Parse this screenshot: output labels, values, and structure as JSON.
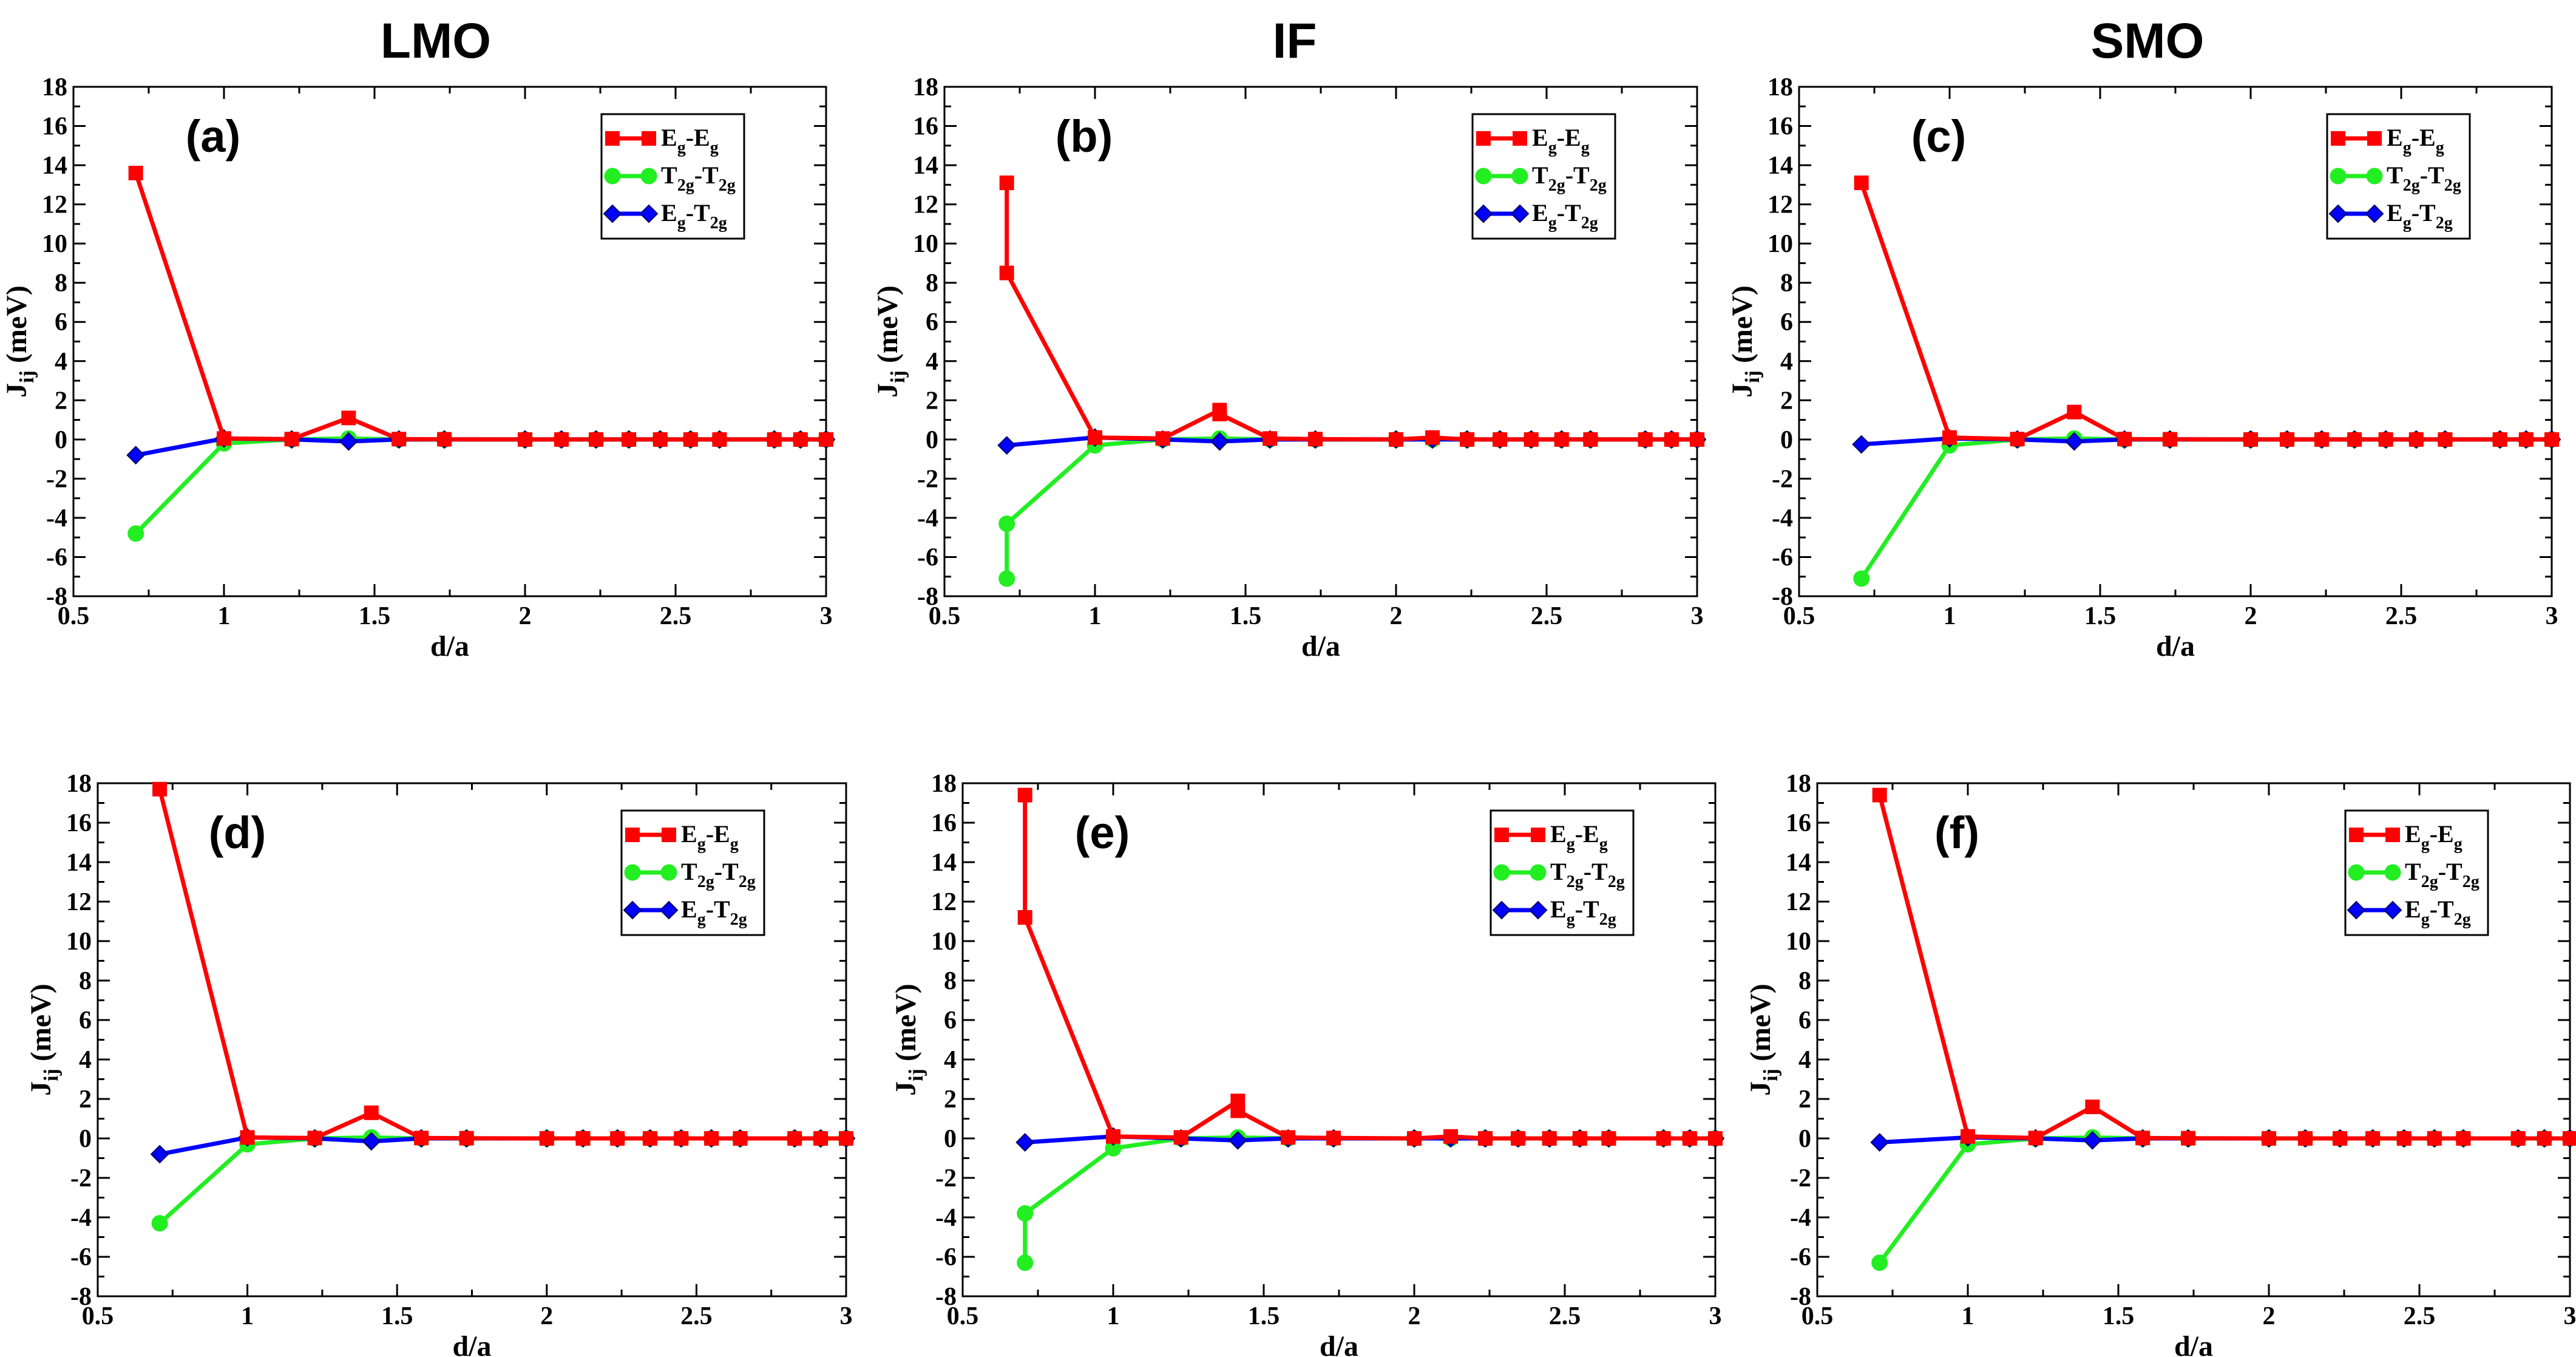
{
  "figure": {
    "column_titles": [
      "LMO",
      "IF",
      "SMO"
    ],
    "xlabel": "d/a",
    "ylabel_main": "J",
    "ylabel_sub": "ij",
    "ylabel_unit": " (meV)",
    "legend": [
      {
        "key": "Eg-Eg",
        "parts": [
          [
            "E",
            ""
          ],
          [
            "g",
            "sub"
          ],
          [
            "-E",
            ""
          ],
          [
            "g",
            "sub"
          ]
        ],
        "color": "#ff0000",
        "marker": "square"
      },
      {
        "key": "T2g-T2g",
        "parts": [
          [
            "T",
            ""
          ],
          [
            "2g",
            "sub"
          ],
          [
            "-T",
            ""
          ],
          [
            "2g",
            "sub"
          ]
        ],
        "color": "#00ff00",
        "marker": "circle"
      },
      {
        "key": "Eg-T2g",
        "parts": [
          [
            "E",
            ""
          ],
          [
            "g",
            "sub"
          ],
          [
            "-T",
            ""
          ],
          [
            "2g",
            "sub"
          ]
        ],
        "color": "#0000ff",
        "marker": "diamond"
      }
    ],
    "colors": {
      "eg": "#ff0000",
      "t2g": "#22ee22",
      "egt2g": "#0000ff",
      "axis": "#000000"
    }
  },
  "chart_data": [
    {
      "type": "line",
      "panel": "(a)",
      "column": "LMO",
      "row": 0,
      "xlim": [
        0.5,
        3
      ],
      "ylim": [
        -8,
        18
      ],
      "xticks": [
        0.5,
        1,
        1.5,
        2,
        2.5,
        3
      ],
      "xtick_labels": [
        "0.5",
        "1",
        "1.5",
        "2",
        "2.5",
        "3"
      ],
      "yticks": [
        -8,
        -6,
        -4,
        -2,
        0,
        2,
        4,
        6,
        8,
        10,
        12,
        14,
        16,
        18
      ],
      "series": [
        {
          "name": "Eg-Eg",
          "marker": "square",
          "x": [
            0.707,
            1.0,
            1.225,
            1.414,
            1.581,
            1.732,
            2.0,
            2.121,
            2.236,
            2.345,
            2.449,
            2.55,
            2.646,
            2.828,
            2.915,
            3.0
          ],
          "y": [
            13.6,
            0.05,
            0.02,
            1.1,
            0.02,
            0.01,
            0,
            0,
            0,
            0,
            0,
            0,
            0,
            0,
            0,
            0
          ]
        },
        {
          "name": "T2g-T2g",
          "marker": "circle",
          "x": [
            0.707,
            1.0,
            1.225,
            1.414,
            1.581,
            1.732,
            2.0,
            2.121,
            2.236,
            2.345,
            2.449,
            2.55,
            2.646,
            2.828,
            2.915,
            3.0
          ],
          "y": [
            -4.8,
            -0.2,
            0.0,
            0.05,
            0.0,
            0.0,
            0,
            0,
            0,
            0,
            0,
            0,
            0,
            0,
            0,
            0
          ]
        },
        {
          "name": "Eg-T2g",
          "marker": "diamond",
          "x": [
            0.707,
            1.0,
            1.225,
            1.414,
            1.581,
            1.732,
            2.0,
            2.121,
            2.236,
            2.345,
            2.449,
            2.55,
            2.646,
            2.828,
            2.915,
            3.0
          ],
          "y": [
            -0.8,
            0.05,
            0.0,
            -0.1,
            0.0,
            0.0,
            0,
            0,
            0,
            0,
            0,
            0,
            0,
            0,
            0,
            0
          ]
        }
      ]
    },
    {
      "type": "line",
      "panel": "(b)",
      "column": "IF",
      "row": 0,
      "xlim": [
        0.5,
        3
      ],
      "ylim": [
        -8,
        18
      ],
      "xticks": [
        0.5,
        1,
        1.5,
        2,
        2.5,
        3
      ],
      "xtick_labels": [
        "0.5",
        "1",
        "1.5",
        "2",
        "2.5",
        "3"
      ],
      "yticks": [
        -8,
        -6,
        -4,
        -2,
        0,
        2,
        4,
        6,
        8,
        10,
        12,
        14,
        16,
        18
      ],
      "series": [
        {
          "name": "Eg-Eg",
          "marker": "square",
          "x": [
            0.707,
            0.707,
            1.0,
            1.225,
            1.414,
            1.414,
            1.581,
            1.732,
            2.0,
            2.121,
            2.236,
            2.345,
            2.449,
            2.55,
            2.646,
            2.828,
            2.915,
            3.0
          ],
          "y": [
            13.1,
            8.5,
            0.1,
            0.05,
            1.5,
            1.3,
            0.05,
            0.02,
            0,
            0.1,
            0,
            0,
            0,
            0,
            0,
            0,
            0,
            0
          ]
        },
        {
          "name": "T2g-T2g",
          "marker": "circle",
          "x": [
            0.707,
            0.707,
            1.0,
            1.225,
            1.414,
            1.581,
            1.732,
            2.0,
            2.121,
            2.236,
            2.345,
            2.449,
            2.55,
            2.646,
            2.828,
            2.915,
            3.0
          ],
          "y": [
            -7.1,
            -4.3,
            -0.3,
            0.0,
            0.05,
            0.0,
            0.0,
            0,
            0,
            0,
            0,
            0,
            0,
            0,
            0,
            0,
            0
          ]
        },
        {
          "name": "Eg-T2g",
          "marker": "diamond",
          "x": [
            0.707,
            1.0,
            1.225,
            1.414,
            1.581,
            1.732,
            2.0,
            2.121,
            2.236,
            2.345,
            2.449,
            2.55,
            2.646,
            2.828,
            2.915,
            3.0
          ],
          "y": [
            -0.3,
            0.1,
            0.0,
            -0.1,
            0.0,
            0.0,
            0,
            0,
            0,
            0,
            0,
            0,
            0,
            0,
            0,
            0
          ]
        }
      ]
    },
    {
      "type": "line",
      "panel": "(c)",
      "column": "SMO",
      "row": 0,
      "xlim": [
        0.5,
        3
      ],
      "ylim": [
        -8,
        18
      ],
      "xticks": [
        0.5,
        1,
        1.5,
        2,
        2.5,
        3
      ],
      "xtick_labels": [
        "0.5",
        "1",
        "1.5",
        "2",
        "2.5",
        "3"
      ],
      "yticks": [
        -8,
        -6,
        -4,
        -2,
        0,
        2,
        4,
        6,
        8,
        10,
        12,
        14,
        16,
        18
      ],
      "series": [
        {
          "name": "Eg-Eg",
          "marker": "square",
          "x": [
            0.707,
            1.0,
            1.225,
            1.414,
            1.581,
            1.732,
            2.0,
            2.121,
            2.236,
            2.345,
            2.449,
            2.55,
            2.646,
            2.828,
            2.915,
            3.0
          ],
          "y": [
            13.1,
            0.1,
            0.02,
            1.4,
            0.02,
            0.01,
            0,
            0,
            0,
            0,
            0,
            0,
            0,
            0,
            0,
            0
          ]
        },
        {
          "name": "T2g-T2g",
          "marker": "circle",
          "x": [
            0.707,
            1.0,
            1.225,
            1.414,
            1.581,
            1.732,
            2.0,
            2.121,
            2.236,
            2.345,
            2.449,
            2.55,
            2.646,
            2.828,
            2.915,
            3.0
          ],
          "y": [
            -7.1,
            -0.3,
            0.0,
            0.05,
            0.0,
            0.0,
            0,
            0,
            0,
            0,
            0,
            0,
            0,
            0,
            0,
            0
          ]
        },
        {
          "name": "Eg-T2g",
          "marker": "diamond",
          "x": [
            0.707,
            1.0,
            1.225,
            1.414,
            1.581,
            1.732,
            2.0,
            2.121,
            2.236,
            2.345,
            2.449,
            2.55,
            2.646,
            2.828,
            2.915,
            3.0
          ],
          "y": [
            -0.25,
            0.05,
            0.0,
            -0.1,
            0.0,
            0.0,
            0,
            0,
            0,
            0,
            0,
            0,
            0,
            0,
            0,
            0
          ]
        }
      ]
    },
    {
      "type": "line",
      "panel": "(d)",
      "column": "LMO",
      "row": 1,
      "xlim": [
        0.5,
        3
      ],
      "ylim": [
        -8,
        18
      ],
      "xticks": [
        0.5,
        1,
        1.5,
        2,
        2.5,
        3
      ],
      "xtick_labels": [
        "0.5",
        "1",
        "1.5",
        "2",
        "2.5",
        "3"
      ],
      "yticks": [
        -8,
        -6,
        -4,
        -2,
        0,
        2,
        4,
        6,
        8,
        10,
        12,
        14,
        16,
        18
      ],
      "series": [
        {
          "name": "Eg-Eg",
          "marker": "square",
          "x": [
            0.707,
            1.0,
            1.225,
            1.414,
            1.581,
            1.732,
            2.0,
            2.121,
            2.236,
            2.345,
            2.449,
            2.55,
            2.646,
            2.828,
            2.915,
            3.0
          ],
          "y": [
            17.7,
            0.05,
            0.02,
            1.3,
            0.02,
            0.01,
            0,
            0,
            0,
            0,
            0,
            0,
            0,
            0,
            0,
            0
          ]
        },
        {
          "name": "T2g-T2g",
          "marker": "circle",
          "x": [
            0.707,
            1.0,
            1.225,
            1.414,
            1.581,
            1.732,
            2.0,
            2.121,
            2.236,
            2.345,
            2.449,
            2.55,
            2.646,
            2.828,
            2.915,
            3.0
          ],
          "y": [
            -4.3,
            -0.3,
            0.0,
            0.05,
            0.0,
            0.0,
            0,
            0,
            0,
            0,
            0,
            0,
            0,
            0,
            0,
            0
          ]
        },
        {
          "name": "Eg-T2g",
          "marker": "diamond",
          "x": [
            0.707,
            1.0,
            1.225,
            1.414,
            1.581,
            1.732,
            2.0,
            2.121,
            2.236,
            2.345,
            2.449,
            2.55,
            2.646,
            2.828,
            2.915,
            3.0
          ],
          "y": [
            -0.8,
            0.05,
            0.0,
            -0.15,
            0.0,
            0.0,
            0,
            0,
            0,
            0,
            0,
            0,
            0,
            0,
            0,
            0
          ]
        }
      ]
    },
    {
      "type": "line",
      "panel": "(e)",
      "column": "IF",
      "row": 1,
      "xlim": [
        0.5,
        3
      ],
      "ylim": [
        -8,
        18
      ],
      "xticks": [
        0.5,
        1,
        1.5,
        2,
        2.5,
        3
      ],
      "xtick_labels": [
        "0.5",
        "1",
        "1.5",
        "2",
        "2.5",
        "3"
      ],
      "yticks": [
        -8,
        -6,
        -4,
        -2,
        0,
        2,
        4,
        6,
        8,
        10,
        12,
        14,
        16,
        18
      ],
      "series": [
        {
          "name": "Eg-Eg",
          "marker": "square",
          "x": [
            0.707,
            0.707,
            1.0,
            1.225,
            1.414,
            1.414,
            1.581,
            1.732,
            2.0,
            2.121,
            2.236,
            2.345,
            2.449,
            2.55,
            2.646,
            2.828,
            2.915,
            3.0
          ],
          "y": [
            17.4,
            11.2,
            0.1,
            0.05,
            1.9,
            1.4,
            0.05,
            0.02,
            0,
            0.1,
            0,
            0,
            0,
            0,
            0,
            0,
            0,
            0
          ]
        },
        {
          "name": "T2g-T2g",
          "marker": "circle",
          "x": [
            0.707,
            0.707,
            1.0,
            1.225,
            1.414,
            1.581,
            1.732,
            2.0,
            2.121,
            2.236,
            2.345,
            2.449,
            2.55,
            2.646,
            2.828,
            2.915,
            3.0
          ],
          "y": [
            -6.3,
            -3.8,
            -0.5,
            0.0,
            0.05,
            0.0,
            0.0,
            0,
            0,
            0,
            0,
            0,
            0,
            0,
            0,
            0,
            0
          ]
        },
        {
          "name": "Eg-T2g",
          "marker": "diamond",
          "x": [
            0.707,
            1.0,
            1.225,
            1.414,
            1.581,
            1.732,
            2.0,
            2.121,
            2.236,
            2.345,
            2.449,
            2.55,
            2.646,
            2.828,
            2.915,
            3.0
          ],
          "y": [
            -0.2,
            0.1,
            0.0,
            -0.1,
            0.0,
            0.0,
            0,
            0,
            0,
            0,
            0,
            0,
            0,
            0,
            0,
            0
          ]
        }
      ]
    },
    {
      "type": "line",
      "panel": "(f)",
      "column": "SMO",
      "row": 1,
      "xlim": [
        0.5,
        3
      ],
      "ylim": [
        -8,
        18
      ],
      "xticks": [
        0.5,
        1,
        1.5,
        2,
        2.5,
        3
      ],
      "xtick_labels": [
        "0.5",
        "1",
        "1.5",
        "2",
        "2.5",
        "3"
      ],
      "yticks": [
        -8,
        -6,
        -4,
        -2,
        0,
        2,
        4,
        6,
        8,
        10,
        12,
        14,
        16,
        18
      ],
      "series": [
        {
          "name": "Eg-Eg",
          "marker": "square",
          "x": [
            0.707,
            1.0,
            1.225,
            1.414,
            1.581,
            1.732,
            2.0,
            2.121,
            2.236,
            2.345,
            2.449,
            2.55,
            2.646,
            2.828,
            2.915,
            3.0
          ],
          "y": [
            17.4,
            0.1,
            0.02,
            1.6,
            0.02,
            0.01,
            0,
            0,
            0,
            0,
            0,
            0,
            0,
            0,
            0,
            0
          ]
        },
        {
          "name": "T2g-T2g",
          "marker": "circle",
          "x": [
            0.707,
            1.0,
            1.225,
            1.414,
            1.581,
            1.732,
            2.0,
            2.121,
            2.236,
            2.345,
            2.449,
            2.55,
            2.646,
            2.828,
            2.915,
            3.0
          ],
          "y": [
            -6.3,
            -0.3,
            0.0,
            0.05,
            0.0,
            0.0,
            0,
            0,
            0,
            0,
            0,
            0,
            0,
            0,
            0,
            0
          ]
        },
        {
          "name": "Eg-T2g",
          "marker": "diamond",
          "x": [
            0.707,
            1.0,
            1.225,
            1.414,
            1.581,
            1.732,
            2.0,
            2.121,
            2.236,
            2.345,
            2.449,
            2.55,
            2.646,
            2.828,
            2.915,
            3.0
          ],
          "y": [
            -0.2,
            0.05,
            0.0,
            -0.1,
            0.0,
            0.0,
            0,
            0,
            0,
            0,
            0,
            0,
            0,
            0,
            0,
            0
          ]
        }
      ]
    }
  ]
}
